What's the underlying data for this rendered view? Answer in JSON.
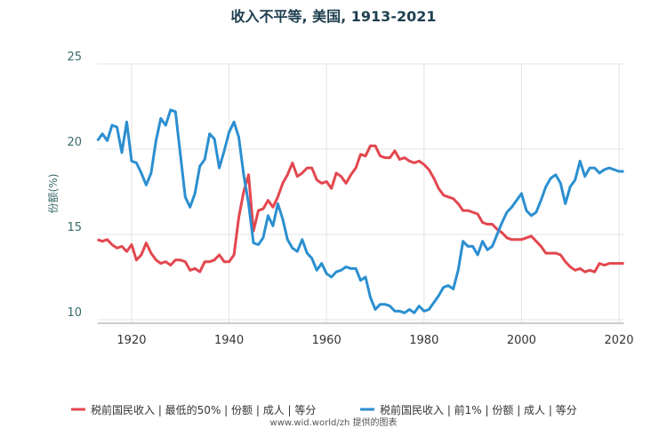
{
  "chart_data": {
    "type": "line",
    "title": "收入不平等, 美国, 1913-2021",
    "ylabel": "份额(%)",
    "source": "www.wid.world/zh 提供的图表",
    "x": [
      1913,
      1914,
      1915,
      1916,
      1917,
      1918,
      1919,
      1920,
      1921,
      1922,
      1923,
      1924,
      1925,
      1926,
      1927,
      1928,
      1929,
      1930,
      1931,
      1932,
      1933,
      1934,
      1935,
      1936,
      1937,
      1938,
      1939,
      1940,
      1941,
      1942,
      1943,
      1944,
      1945,
      1946,
      1947,
      1948,
      1949,
      1950,
      1951,
      1952,
      1953,
      1954,
      1955,
      1956,
      1957,
      1958,
      1959,
      1960,
      1961,
      1962,
      1963,
      1964,
      1965,
      1966,
      1967,
      1968,
      1969,
      1970,
      1971,
      1972,
      1973,
      1974,
      1975,
      1976,
      1977,
      1978,
      1979,
      1980,
      1981,
      1982,
      1983,
      1984,
      1985,
      1986,
      1987,
      1988,
      1989,
      1990,
      1991,
      1992,
      1993,
      1994,
      1995,
      1996,
      1997,
      1998,
      1999,
      2000,
      2001,
      2002,
      2003,
      2004,
      2005,
      2006,
      2007,
      2008,
      2009,
      2010,
      2011,
      2012,
      2013,
      2014,
      2015,
      2016,
      2017,
      2018,
      2019,
      2020,
      2021
    ],
    "series": [
      {
        "name": "税前国民收入 | 最低的50% | 份额 | 成人 | 等分",
        "color": "#e2474f",
        "values": [
          14.7,
          14.6,
          14.7,
          14.4,
          14.2,
          14.3,
          14.0,
          14.4,
          13.5,
          13.8,
          14.5,
          13.9,
          13.5,
          13.3,
          13.4,
          13.2,
          13.5,
          13.5,
          13.4,
          12.9,
          13.0,
          12.8,
          13.4,
          13.4,
          13.5,
          13.8,
          13.4,
          13.4,
          13.8,
          16.0,
          17.5,
          18.5,
          15.2,
          16.4,
          16.5,
          17.0,
          16.6,
          17.2,
          18.0,
          18.5,
          19.2,
          18.4,
          18.6,
          18.9,
          18.9,
          18.2,
          18.0,
          18.1,
          17.7,
          18.6,
          18.4,
          18.0,
          18.5,
          18.9,
          19.7,
          19.6,
          20.2,
          20.2,
          19.6,
          19.5,
          19.5,
          19.9,
          19.4,
          19.5,
          19.3,
          19.2,
          19.3,
          19.1,
          18.8,
          18.3,
          17.7,
          17.3,
          17.2,
          17.1,
          16.8,
          16.4,
          16.4,
          16.3,
          16.2,
          15.7,
          15.6,
          15.6,
          15.3,
          15.1,
          14.8,
          14.7,
          14.7,
          14.7,
          14.8,
          14.9,
          14.6,
          14.3,
          13.9,
          13.9,
          13.9,
          13.8,
          13.4,
          13.1,
          12.9,
          13.0,
          12.8,
          12.9,
          12.8,
          13.3,
          13.2,
          13.3,
          13.3,
          13.3,
          13.3
        ]
      },
      {
        "name": "税前国民收入 | 前1% | 份额 | 成人 | 等分",
        "color": "#2b8fd0",
        "values": [
          20.5,
          20.9,
          20.5,
          21.4,
          21.3,
          19.8,
          21.6,
          19.3,
          19.2,
          18.6,
          17.9,
          18.6,
          20.5,
          21.8,
          21.4,
          22.3,
          22.2,
          19.7,
          17.2,
          16.6,
          17.4,
          19.0,
          19.4,
          20.9,
          20.6,
          18.9,
          19.9,
          21.0,
          21.6,
          20.7,
          18.5,
          16.8,
          14.5,
          14.4,
          14.8,
          16.1,
          15.5,
          16.8,
          15.9,
          14.7,
          14.2,
          14.0,
          14.7,
          13.9,
          13.6,
          12.9,
          13.3,
          12.7,
          12.5,
          12.8,
          12.9,
          13.1,
          13.0,
          13.0,
          12.3,
          12.5,
          11.3,
          10.6,
          10.9,
          10.9,
          10.8,
          10.5,
          10.5,
          10.4,
          10.6,
          10.4,
          10.8,
          10.5,
          10.6,
          11.0,
          11.4,
          11.9,
          12.0,
          11.8,
          12.9,
          14.6,
          14.3,
          14.3,
          13.8,
          14.6,
          14.1,
          14.3,
          15.0,
          15.7,
          16.3,
          16.6,
          17.0,
          17.4,
          16.4,
          16.1,
          16.3,
          17.0,
          17.8,
          18.3,
          18.5,
          18.0,
          16.8,
          17.8,
          18.2,
          19.3,
          18.4,
          18.9,
          18.9,
          18.6,
          18.8,
          18.9,
          18.8,
          18.7,
          18.7
        ]
      }
    ],
    "xlim": [
      1913,
      2021
    ],
    "xticks": [
      1920,
      1940,
      1960,
      1980,
      2000,
      2020
    ],
    "ylim": [
      10,
      25
    ],
    "yticks": [
      10,
      15,
      20,
      25
    ],
    "grid": true,
    "legend": "bottom"
  }
}
